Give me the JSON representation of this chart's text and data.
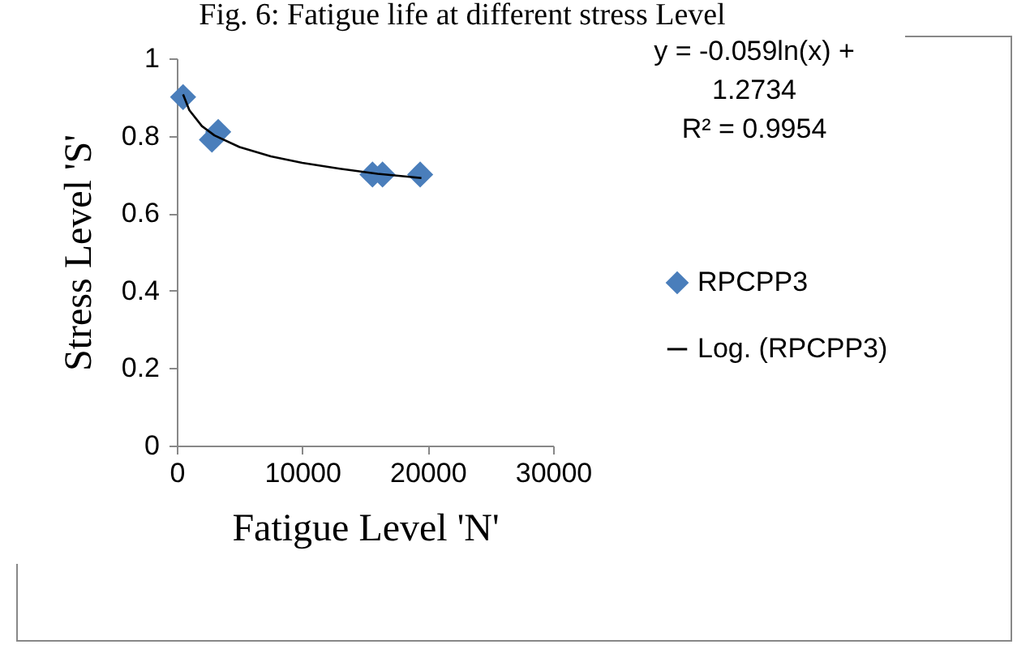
{
  "chart_data": {
    "type": "scatter",
    "title": "Fig. 6: Fatigue life at different stress Level",
    "xlabel": "Fatigue Level 'N'",
    "ylabel": "Stress Level 'S'",
    "annotations": [
      "y = -0.059ln(x) + 1.2734",
      "R² = 0.9954"
    ],
    "xlim": [
      0,
      30000
    ],
    "xticks": [
      0,
      10000,
      20000,
      30000
    ],
    "ylim": [
      0,
      1
    ],
    "yticks": [
      0,
      0.2,
      0.4,
      0.6,
      0.8,
      1
    ],
    "grid": false,
    "legend": "right",
    "series": [
      {
        "name": "RPCPP3",
        "marker": "diamond",
        "color": "#4a7ebb",
        "x": [
          500,
          2800,
          3300,
          15600,
          16400,
          19400
        ],
        "values": [
          0.9,
          0.79,
          0.81,
          0.7,
          0.7,
          0.7
        ]
      },
      {
        "name": "Log. (RPCPP3)",
        "type": "line",
        "color": "#000000",
        "x": [
          500,
          1000,
          2000,
          3000,
          5000,
          7500,
          10000,
          13000,
          16000,
          19500
        ],
        "values": [
          0.907,
          0.866,
          0.825,
          0.801,
          0.771,
          0.747,
          0.73,
          0.715,
          0.702,
          0.691
        ]
      }
    ]
  }
}
